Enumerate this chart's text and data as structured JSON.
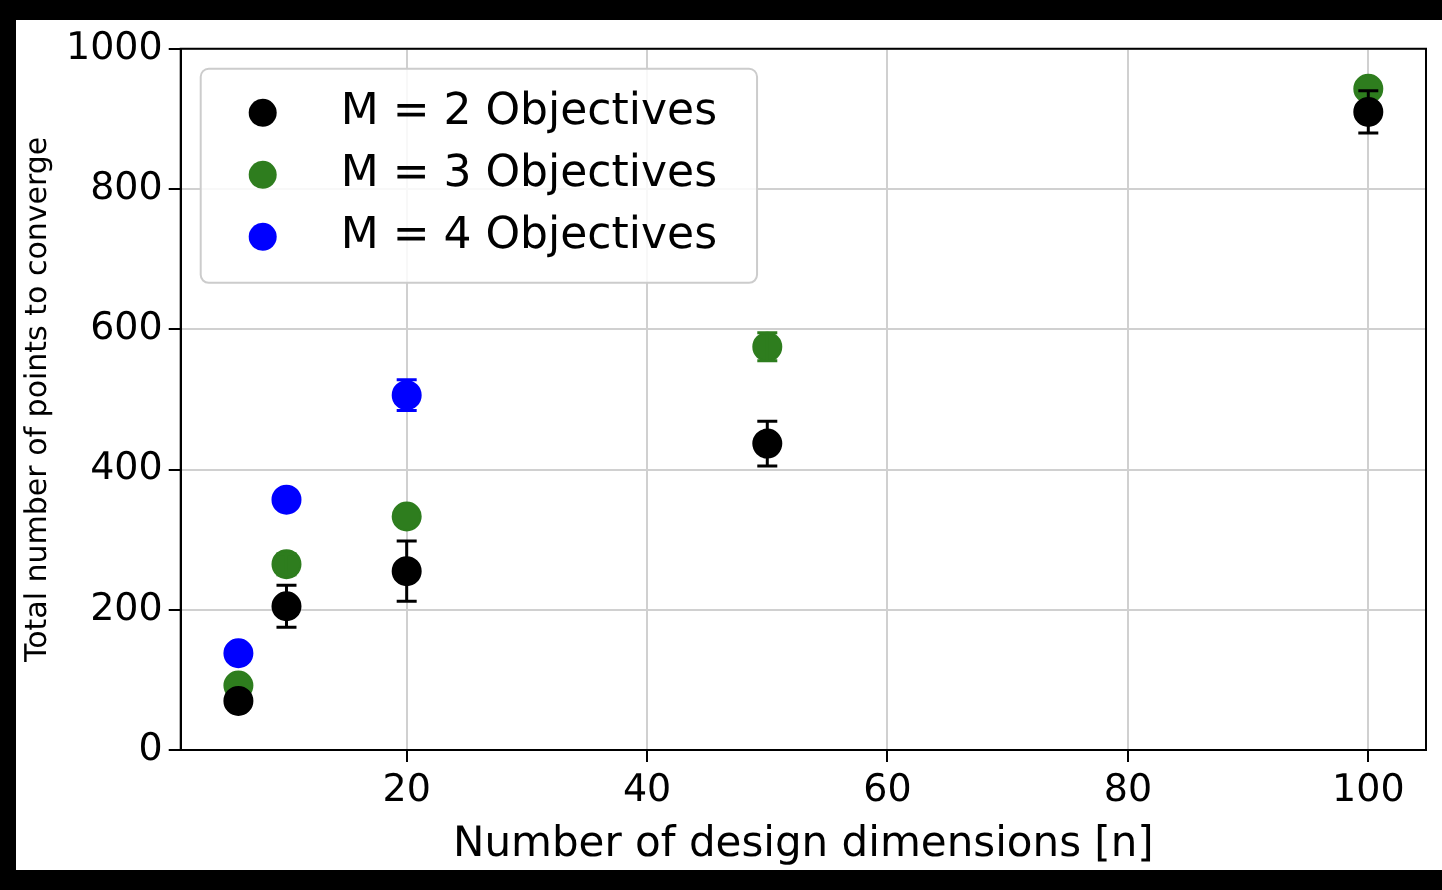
{
  "chart_data": {
    "type": "scatter",
    "xlabel": "Number of design dimensions [n]",
    "ylabel": "Total number of points to converge",
    "xlim": [
      1.2,
      104.8
    ],
    "xticks": [
      20,
      40,
      60,
      80,
      100
    ],
    "ylim": [
      0,
      1000
    ],
    "yticks": [
      0,
      200,
      400,
      600,
      800,
      1000
    ],
    "grid": true,
    "legend": "top left",
    "marker": "circle",
    "series": [
      {
        "name": "M = 2 Objectives",
        "color": "#000000",
        "x": [
          6,
          10,
          20,
          50,
          100
        ],
        "values": [
          70,
          205,
          255,
          437,
          910
        ],
        "errors": [
          null,
          30,
          43,
          32,
          30
        ]
      },
      {
        "name": "M = 3 Objectives",
        "color": "#2e7d1e",
        "x": [
          6,
          10,
          20,
          50,
          100
        ],
        "values": [
          92,
          265,
          333,
          575,
          943
        ],
        "errors": [
          null,
          15,
          null,
          20,
          null
        ]
      },
      {
        "name": "M = 4 Objectives",
        "color": "#0000ff",
        "x": [
          6,
          10,
          20
        ],
        "values": [
          138,
          357,
          506
        ],
        "errors": [
          null,
          null,
          22
        ]
      }
    ]
  }
}
